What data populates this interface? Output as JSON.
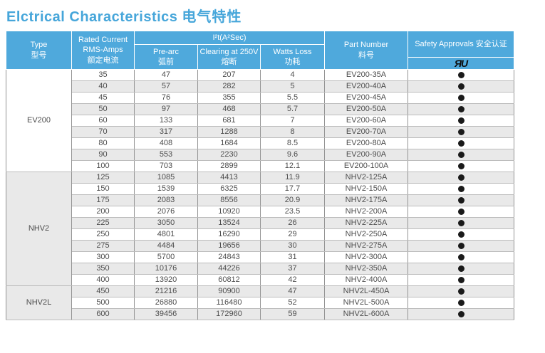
{
  "title": {
    "en": "Elctrical Characteristics",
    "zh": "电气特性"
  },
  "colors": {
    "accent_blue": "#4fa9dc",
    "title_blue": "#46a6da",
    "stripe_gray": "#e9e9e9",
    "dot_black": "#1a1a1a"
  },
  "table": {
    "header": {
      "type": [
        "Type",
        "型号"
      ],
      "rated_current": [
        "Rated Current",
        "RMS-Amps",
        "额定电流"
      ],
      "i2t_group": "I²t(A²Sec)",
      "pre_arc": [
        "Pre-arc",
        "弧前"
      ],
      "clearing": [
        "Clearing at 250V",
        "熔断"
      ],
      "watts_loss": [
        "Watts Loss",
        "功耗"
      ],
      "part_number": [
        "Part Number",
        "料号"
      ],
      "safety_approvals": "Safety Approvals 安全认证",
      "ul_mark": "ЯU"
    },
    "groups": [
      {
        "type": "EV200",
        "rows": [
          {
            "rated": "35",
            "pre_arc": "47",
            "clearing": "207",
            "watts": "4",
            "part": "EV200-35A",
            "ul": true
          },
          {
            "rated": "40",
            "pre_arc": "57",
            "clearing": "282",
            "watts": "5",
            "part": "EV200-40A",
            "ul": true
          },
          {
            "rated": "45",
            "pre_arc": "76",
            "clearing": "355",
            "watts": "5.5",
            "part": "EV200-45A",
            "ul": true
          },
          {
            "rated": "50",
            "pre_arc": "97",
            "clearing": "468",
            "watts": "5.7",
            "part": "EV200-50A",
            "ul": true
          },
          {
            "rated": "60",
            "pre_arc": "133",
            "clearing": "681",
            "watts": "7",
            "part": "EV200-60A",
            "ul": true
          },
          {
            "rated": "70",
            "pre_arc": "317",
            "clearing": "1288",
            "watts": "8",
            "part": "EV200-70A",
            "ul": true
          },
          {
            "rated": "80",
            "pre_arc": "408",
            "clearing": "1684",
            "watts": "8.5",
            "part": "EV200-80A",
            "ul": true
          },
          {
            "rated": "90",
            "pre_arc": "553",
            "clearing": "2230",
            "watts": "9.6",
            "part": "EV200-90A",
            "ul": true
          },
          {
            "rated": "100",
            "pre_arc": "703",
            "clearing": "2899",
            "watts": "12.1",
            "part": "EV200-100A",
            "ul": true
          }
        ]
      },
      {
        "type": "NHV2",
        "rows": [
          {
            "rated": "125",
            "pre_arc": "1085",
            "clearing": "4413",
            "watts": "11.9",
            "part": "NHV2-125A",
            "ul": true
          },
          {
            "rated": "150",
            "pre_arc": "1539",
            "clearing": "6325",
            "watts": "17.7",
            "part": "NHV2-150A",
            "ul": true
          },
          {
            "rated": "175",
            "pre_arc": "2083",
            "clearing": "8556",
            "watts": "20.9",
            "part": "NHV2-175A",
            "ul": true
          },
          {
            "rated": "200",
            "pre_arc": "2076",
            "clearing": "10920",
            "watts": "23.5",
            "part": "NHV2-200A",
            "ul": true
          },
          {
            "rated": "225",
            "pre_arc": "3050",
            "clearing": "13524",
            "watts": "26",
            "part": "NHV2-225A",
            "ul": true
          },
          {
            "rated": "250",
            "pre_arc": "4801",
            "clearing": "16290",
            "watts": "29",
            "part": "NHV2-250A",
            "ul": true
          },
          {
            "rated": "275",
            "pre_arc": "4484",
            "clearing": "19656",
            "watts": "30",
            "part": "NHV2-275A",
            "ul": true
          },
          {
            "rated": "300",
            "pre_arc": "5700",
            "clearing": "24843",
            "watts": "31",
            "part": "NHV2-300A",
            "ul": true
          },
          {
            "rated": "350",
            "pre_arc": "10176",
            "clearing": "44226",
            "watts": "37",
            "part": "NHV2-350A",
            "ul": true
          },
          {
            "rated": "400",
            "pre_arc": "13920",
            "clearing": "60812",
            "watts": "42",
            "part": "NHV2-400A",
            "ul": true
          }
        ]
      },
      {
        "type": "NHV2L",
        "rows": [
          {
            "rated": "450",
            "pre_arc": "21216",
            "clearing": "90900",
            "watts": "47",
            "part": "NHV2L-450A",
            "ul": true
          },
          {
            "rated": "500",
            "pre_arc": "26880",
            "clearing": "116480",
            "watts": "52",
            "part": "NHV2L-500A",
            "ul": true
          },
          {
            "rated": "600",
            "pre_arc": "39456",
            "clearing": "172960",
            "watts": "59",
            "part": "NHV2L-600A",
            "ul": true
          }
        ]
      }
    ]
  }
}
